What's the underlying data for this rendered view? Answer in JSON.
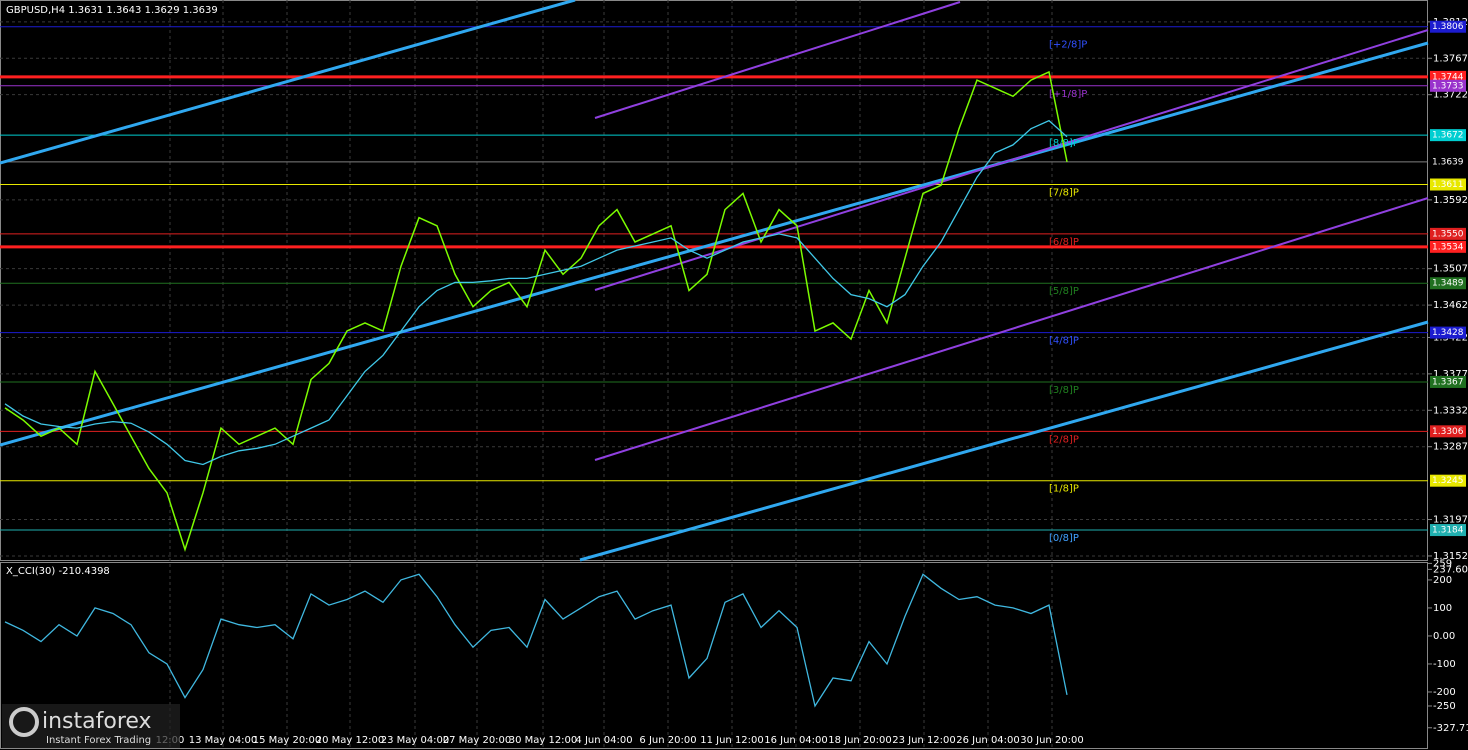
{
  "chart_data": [
    {
      "type": "line",
      "title": "GBPUSD,H4  1.3631 1.3643 1.3629 1.3639",
      "ylim": [
        1.3147,
        1.3839
      ],
      "yticks": [
        1.3812,
        1.3767,
        1.3722,
        1.3592,
        1.3507,
        1.3462,
        1.3422,
        1.3377,
        1.3332,
        1.3287,
        1.3197,
        1.3152
      ],
      "grid": true,
      "xtick_labels": [
        "12:00",
        "13 May 04:00",
        "15 May 20:00",
        "20 May 12:00",
        "23 May 04:00",
        "27 May 20:00",
        "30 May 12:00",
        "4 Jun 04:00",
        "6 Jun 20:00",
        "11 Jun 12:00",
        "16 Jun 04:00",
        "18 Jun 20:00",
        "23 Jun 12:00",
        "26 Jun 04:00",
        "30 Jun 20:00"
      ],
      "series": [
        {
          "color": "#7cfc00",
          "values": [
            1.3335,
            1.332,
            1.33,
            1.331,
            1.329,
            1.338,
            1.334,
            1.33,
            1.326,
            1.323,
            1.316,
            1.323,
            1.331,
            1.329,
            1.33,
            1.331,
            1.329,
            1.337,
            1.339,
            1.343,
            1.344,
            1.343,
            1.351,
            1.357,
            1.356,
            1.35,
            1.346,
            1.348,
            1.349,
            1.346,
            1.353,
            1.35,
            1.352,
            1.356,
            1.358,
            1.354,
            1.355,
            1.356,
            1.348,
            1.35,
            1.358,
            1.36,
            1.354,
            1.358,
            1.356,
            1.343,
            1.344,
            1.342,
            1.348,
            1.344,
            1.352,
            1.36,
            1.361,
            1.368,
            1.374,
            1.373,
            1.372,
            1.374,
            1.375,
            1.3639
          ]
        },
        {
          "color": "#40c8e8",
          "values": [
            1.334,
            1.3325,
            1.3315,
            1.3312,
            1.331,
            1.3315,
            1.3318,
            1.3316,
            1.3305,
            1.329,
            1.327,
            1.3265,
            1.3275,
            1.3282,
            1.3285,
            1.329,
            1.33,
            1.331,
            1.332,
            1.335,
            1.338,
            1.34,
            1.343,
            1.346,
            1.348,
            1.349,
            1.349,
            1.3492,
            1.3495,
            1.3495,
            1.35,
            1.3505,
            1.351,
            1.352,
            1.353,
            1.3535,
            1.354,
            1.3545,
            1.353,
            1.352,
            1.353,
            1.354,
            1.3545,
            1.355,
            1.3545,
            1.352,
            1.3495,
            1.3475,
            1.347,
            1.346,
            1.3475,
            1.351,
            1.354,
            1.358,
            1.362,
            1.365,
            1.366,
            1.368,
            1.369,
            1.367
          ]
        }
      ],
      "levels": [
        {
          "value": 1.3806,
          "label": "1.3806",
          "color": "#1c1cd0"
        },
        {
          "value": 1.3744,
          "label": "1.3744",
          "color": "#ff2020"
        },
        {
          "value": 1.3733,
          "label": "1.3733",
          "color": "#9932cc"
        },
        {
          "value": 1.3672,
          "label": "1.3672",
          "color": "#00ced1"
        },
        {
          "value": 1.3639,
          "label": "1.3639",
          "color": "#808080"
        },
        {
          "value": 1.3611,
          "label": "1.3611",
          "color": "#e8e800"
        },
        {
          "value": 1.355,
          "label": "1.3550",
          "color": "#e02020"
        },
        {
          "value": 1.3534,
          "label": "1.3534",
          "color": "#ff2020"
        },
        {
          "value": 1.3489,
          "label": "1.3489",
          "color": "#207020"
        },
        {
          "value": 1.3428,
          "label": "1.3428",
          "color": "#1c1cd0"
        },
        {
          "value": 1.3367,
          "label": "1.3367",
          "color": "#207020"
        },
        {
          "value": 1.3306,
          "label": "1.3306",
          "color": "#e02020"
        },
        {
          "value": 1.3245,
          "label": "1.3245",
          "color": "#e8e800"
        },
        {
          "value": 1.3184,
          "label": "1.3184",
          "color": "#20b0b0"
        }
      ],
      "murrey": [
        {
          "value": 1.3794,
          "label": "[+2/8]P",
          "color": "#3050ff"
        },
        {
          "value": 1.3733,
          "label": "[+1/8]P",
          "color": "#9932cc"
        },
        {
          "value": 1.3672,
          "label": "[8/8]P",
          "color": "#00ced1"
        },
        {
          "value": 1.3611,
          "label": "[7/8]P",
          "color": "#e8e800"
        },
        {
          "value": 1.355,
          "label": "[6/8]P",
          "color": "#e02020"
        },
        {
          "value": 1.3489,
          "label": "[5/8]P",
          "color": "#208020"
        },
        {
          "value": 1.3428,
          "label": "[4/8]P",
          "color": "#3050ff"
        },
        {
          "value": 1.3367,
          "label": "[3/8]P",
          "color": "#208020"
        },
        {
          "value": 1.3306,
          "label": "[2/8]P",
          "color": "#e02020"
        },
        {
          "value": 1.3245,
          "label": "[1/8]P",
          "color": "#e8e800"
        },
        {
          "value": 1.3184,
          "label": "[0/8]P",
          "color": "#40a0ff"
        }
      ]
    },
    {
      "type": "line",
      "title": "X_CCI(30) -210.4398",
      "ylim": [
        -400,
        264
      ],
      "yticks": [
        259,
        237.6065,
        200,
        100,
        {
          "value": 0,
          "label": "0.00"
        },
        -100,
        -200,
        -250,
        -327.719
      ],
      "series": [
        {
          "color": "#40b8e0",
          "values": [
            50,
            20,
            -20,
            40,
            0,
            100,
            80,
            40,
            -60,
            -100,
            -220,
            -120,
            60,
            40,
            30,
            40,
            -10,
            150,
            110,
            130,
            160,
            120,
            200,
            220,
            140,
            40,
            -40,
            20,
            30,
            -40,
            130,
            60,
            100,
            140,
            160,
            60,
            90,
            110,
            -150,
            -80,
            120,
            150,
            30,
            90,
            30,
            -250,
            -150,
            -160,
            -20,
            -100,
            70,
            220,
            170,
            130,
            140,
            110,
            100,
            80,
            110,
            -210.4398
          ]
        }
      ]
    },
    {
      "logo": "instaforex",
      "tagline": "Instant Forex Trading"
    }
  ]
}
